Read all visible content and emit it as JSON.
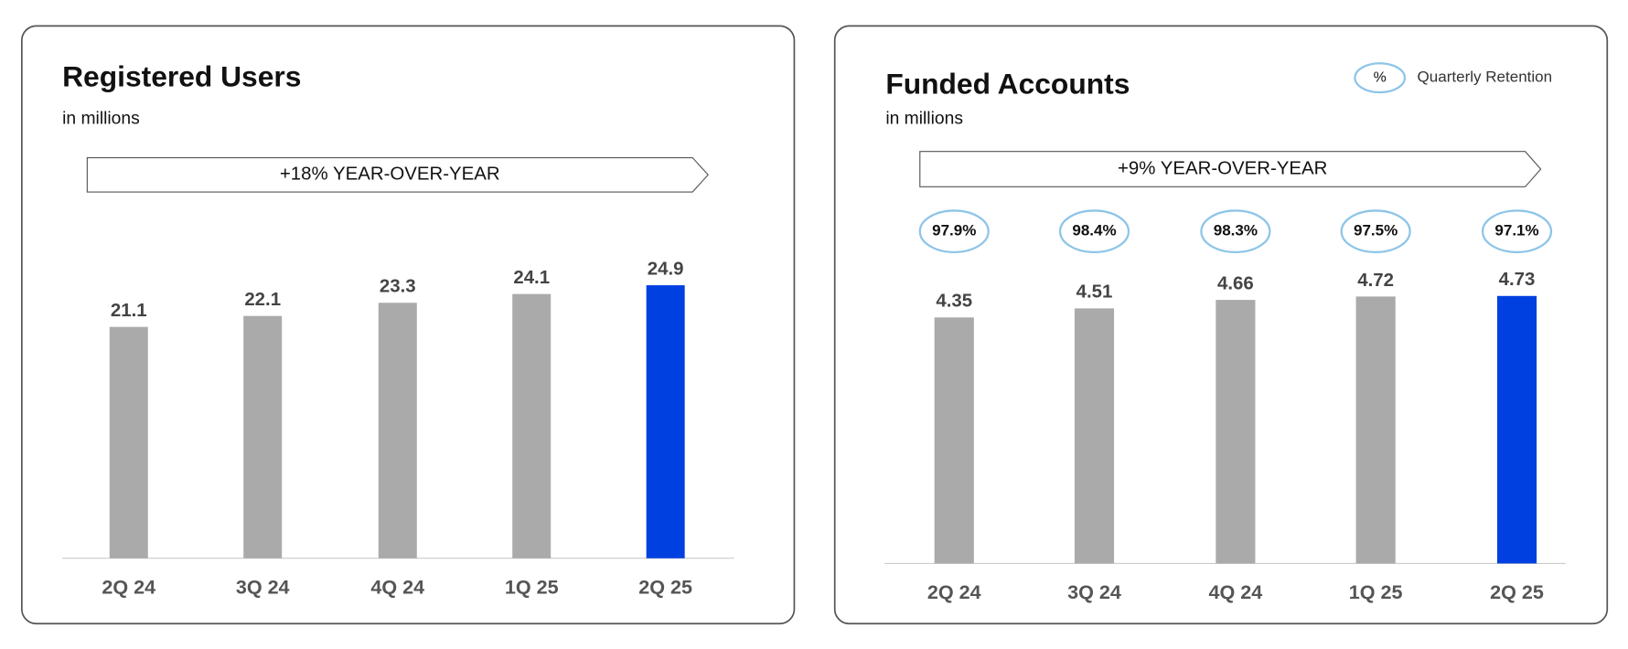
{
  "chart_data": [
    {
      "type": "bar",
      "title": "Registered Users",
      "subtitle": "in millions",
      "annotation": "+18% YEAR-OVER-YEAR",
      "categories": [
        "2Q 24",
        "3Q 24",
        "4Q 24",
        "1Q 25",
        "2Q 25"
      ],
      "values": [
        21.1,
        22.1,
        23.3,
        24.1,
        24.9
      ],
      "colors": [
        "#aaaaaa",
        "#aaaaaa",
        "#aaaaaa",
        "#aaaaaa",
        "#0040e0"
      ],
      "ylim": [
        0,
        30
      ]
    },
    {
      "type": "bar",
      "title": "Funded Accounts",
      "subtitle": "in millions",
      "annotation": "+9% YEAR-OVER-YEAR",
      "categories": [
        "2Q 24",
        "3Q 24",
        "4Q 24",
        "1Q 25",
        "2Q 25"
      ],
      "values": [
        4.35,
        4.51,
        4.66,
        4.72,
        4.73
      ],
      "colors": [
        "#aaaaaa",
        "#aaaaaa",
        "#aaaaaa",
        "#aaaaaa",
        "#0040e0"
      ],
      "ylim": [
        0,
        5
      ],
      "retention": {
        "name": "Quarterly Retention",
        "symbol": "%",
        "color": "#8ec5e8",
        "values": [
          97.9,
          98.4,
          98.3,
          97.5,
          97.1
        ],
        "value_labels": [
          "97.9%",
          "98.4%",
          "98.3%",
          "97.5%",
          "97.1%"
        ]
      }
    }
  ]
}
